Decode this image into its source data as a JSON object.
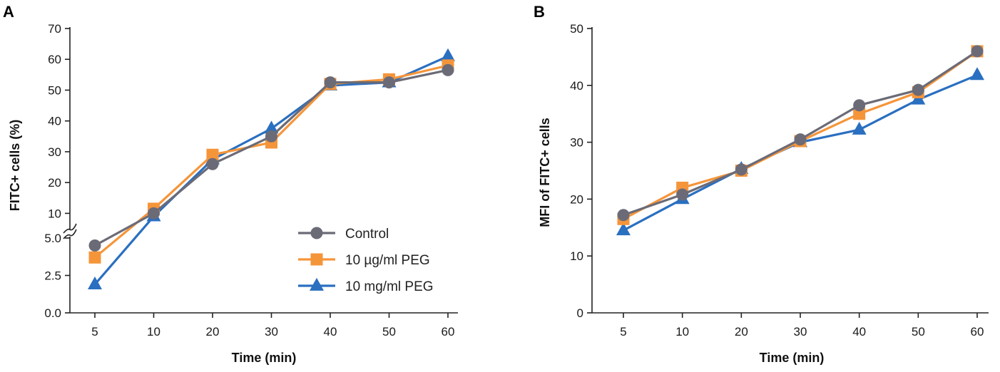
{
  "chart_data": [
    {
      "panel": "A",
      "type": "line",
      "xlabel": "Time (min)",
      "ylabel": "FITC+ cells (%)",
      "x": [
        5,
        10,
        20,
        30,
        40,
        50,
        60
      ],
      "x_tick_labels": [
        "5",
        "10",
        "20",
        "30",
        "40",
        "50",
        "60"
      ],
      "y_axis_break": true,
      "ylim_lower": [
        0,
        5
      ],
      "ylim_upper": [
        5,
        70
      ],
      "y_ticks_lower": [
        0,
        2.5,
        5
      ],
      "y_tick_labels_lower": [
        "0.0",
        "2.5",
        "5.0"
      ],
      "y_ticks_upper": [
        10,
        20,
        30,
        40,
        50,
        60,
        70
      ],
      "y_tick_labels_upper": [
        "10",
        "20",
        "30",
        "40",
        "50",
        "60",
        "70"
      ],
      "legend_position": "bottom-right",
      "series": [
        {
          "name": "Control",
          "marker": "circle",
          "color": "#6b6b77",
          "values": [
            4.5,
            10.0,
            26.0,
            35.0,
            52.5,
            52.5,
            56.5
          ]
        },
        {
          "name": "10 µg/ml PEG",
          "marker": "square",
          "color": "#f5953a",
          "values": [
            3.7,
            11.5,
            29.0,
            33.0,
            52.0,
            53.5,
            58.0
          ]
        },
        {
          "name": "10 mg/ml PEG",
          "marker": "triangle",
          "color": "#2a6fc0",
          "values": [
            1.9,
            9.0,
            27.5,
            37.5,
            51.5,
            52.5,
            61.0
          ]
        }
      ]
    },
    {
      "panel": "B",
      "type": "line",
      "xlabel": "Time (min)",
      "ylabel": "MFI of FITC+ cells",
      "x": [
        5,
        10,
        20,
        30,
        40,
        50,
        60
      ],
      "x_tick_labels": [
        "5",
        "10",
        "20",
        "30",
        "40",
        "50",
        "60"
      ],
      "ylim": [
        0,
        50
      ],
      "y_ticks": [
        0,
        10,
        20,
        30,
        40,
        50
      ],
      "y_tick_labels": [
        "0",
        "10",
        "20",
        "30",
        "40",
        "50"
      ],
      "series": [
        {
          "name": "Control",
          "marker": "circle",
          "color": "#6b6b77",
          "values": [
            17.2,
            20.8,
            25.2,
            30.5,
            36.5,
            39.2,
            46.0
          ]
        },
        {
          "name": "10 µg/ml PEG",
          "marker": "square",
          "color": "#f5953a",
          "values": [
            16.5,
            22.0,
            25.0,
            30.2,
            35.0,
            38.8,
            46.0
          ]
        },
        {
          "name": "10 mg/ml PEG",
          "marker": "triangle",
          "color": "#2a6fc0",
          "values": [
            14.5,
            20.0,
            25.3,
            30.0,
            32.2,
            37.5,
            41.8
          ]
        }
      ]
    }
  ]
}
